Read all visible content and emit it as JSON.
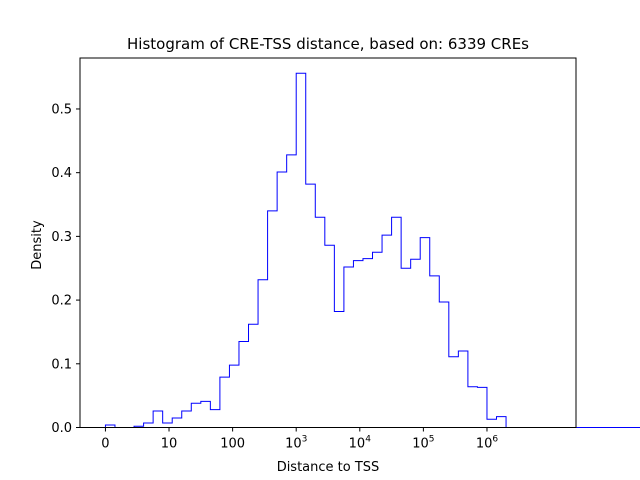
{
  "chart_data": {
    "type": "histogram",
    "title": "Histogram of CRE-TSS distance, based on: 6339 CREs",
    "xlabel": "Distance to TSS",
    "ylabel": "Density",
    "x_scale": "log10(1 + distance)",
    "xlim_log": [
      -0.4,
      7.4
    ],
    "ylim": [
      0,
      0.58
    ],
    "bin_width_log": 0.15,
    "bins_start_log": 0.0,
    "x_ticks": [
      {
        "log": 0,
        "base": "0",
        "exp": ""
      },
      {
        "log": 1,
        "base": "10",
        "exp": ""
      },
      {
        "log": 2,
        "base": "100",
        "exp": ""
      },
      {
        "log": 3,
        "base": "10",
        "exp": "3"
      },
      {
        "log": 4,
        "base": "10",
        "exp": "4"
      },
      {
        "log": 5,
        "base": "10",
        "exp": "5"
      },
      {
        "log": 6,
        "base": "10",
        "exp": "6"
      }
    ],
    "y_ticks": [
      {
        "value": 0.0,
        "label": "0.0"
      },
      {
        "value": 0.1,
        "label": "0.1"
      },
      {
        "value": 0.2,
        "label": "0.2"
      },
      {
        "value": 0.3,
        "label": "0.3"
      },
      {
        "value": 0.4,
        "label": "0.4"
      },
      {
        "value": 0.5,
        "label": "0.5"
      }
    ],
    "values": [
      0.004,
      0.0,
      0.0,
      0.002,
      0.007,
      0.026,
      0.007,
      0.015,
      0.026,
      0.038,
      0.041,
      0.028,
      0.079,
      0.098,
      0.135,
      0.162,
      0.232,
      0.34,
      0.401,
      0.428,
      0.556,
      0.382,
      0.33,
      0.286,
      0.182,
      0.252,
      0.262,
      0.265,
      0.275,
      0.302,
      0.33,
      0.25,
      0.264,
      0.298,
      0.238,
      0.197,
      0.111,
      0.12,
      0.064,
      0.063,
      0.013,
      0.017,
      0.0,
      0.0,
      0.0,
      0.0,
      0.0,
      0.0,
      0.0,
      0.0,
      0.0,
      0.0,
      0.0,
      0.0,
      0.0,
      0.0,
      0.0,
      0.0,
      0.0,
      0.0,
      0.013
    ],
    "line_color": "#0000ff",
    "grid": false,
    "legend": "none"
  }
}
